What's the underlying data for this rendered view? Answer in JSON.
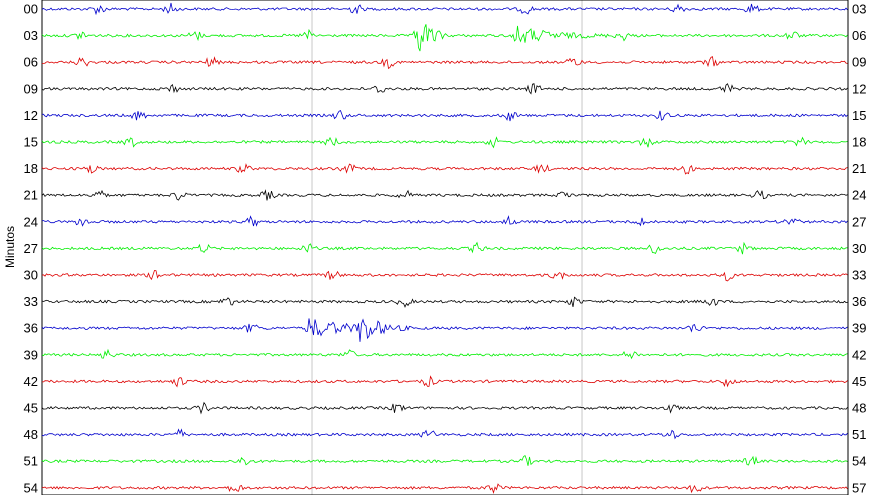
{
  "chart_data": {
    "type": "line",
    "ylabel": "Minutos",
    "left_labels": [
      "00",
      "03",
      "06",
      "09",
      "12",
      "15",
      "18",
      "21",
      "24",
      "27",
      "30",
      "33",
      "36",
      "39",
      "42",
      "45",
      "48",
      "51",
      "54"
    ],
    "right_labels": [
      "03",
      "06",
      "09",
      "12",
      "15",
      "18",
      "21",
      "24",
      "27",
      "30",
      "33",
      "36",
      "39",
      "42",
      "45",
      "48",
      "51",
      "54",
      "57"
    ],
    "trace_colors": [
      "#0000cc",
      "#00ee00",
      "#dd0000",
      "#000000"
    ],
    "grid": true,
    "grid_color": "#c8c8c8",
    "events": [
      {
        "row": 1,
        "at": 0.465,
        "amplitude": 28,
        "duration": 0.04
      },
      {
        "row": 1,
        "at": 0.585,
        "amplitude": 10,
        "duration": 0.12
      },
      {
        "row": 12,
        "at": 0.395,
        "amplitude": 18,
        "duration": 0.06
      },
      {
        "row": 12,
        "at": 0.33,
        "amplitude": 10,
        "duration": 0.13
      }
    ],
    "bursts": [
      [
        0.07,
        0.16,
        0.39,
        0.6,
        0.79,
        0.88
      ],
      [
        0.05,
        0.19,
        0.33,
        0.72,
        0.93
      ],
      [
        0.05,
        0.21,
        0.43,
        0.66,
        0.83
      ],
      [
        0.16,
        0.42,
        0.61,
        0.85
      ],
      [
        0.12,
        0.37,
        0.58,
        0.77
      ],
      [
        0.11,
        0.36,
        0.56,
        0.75,
        0.94
      ],
      [
        0.06,
        0.25,
        0.38,
        0.62,
        0.8
      ],
      [
        0.07,
        0.17,
        0.28,
        0.45,
        0.65,
        0.89
      ],
      [
        0.05,
        0.26,
        0.58,
        0.74,
        0.93
      ],
      [
        0.2,
        0.33,
        0.54,
        0.76,
        0.87
      ],
      [
        0.14,
        0.36,
        0.64,
        0.85
      ],
      [
        0.23,
        0.45,
        0.66,
        0.83
      ],
      [
        0.26,
        0.81
      ],
      [
        0.08,
        0.38,
        0.73
      ],
      [
        0.17,
        0.48,
        0.85
      ],
      [
        0.2,
        0.44,
        0.78
      ],
      [
        0.17,
        0.48,
        0.78
      ],
      [
        0.25,
        0.6,
        0.88
      ],
      [
        0.24,
        0.56,
        0.81
      ]
    ]
  }
}
